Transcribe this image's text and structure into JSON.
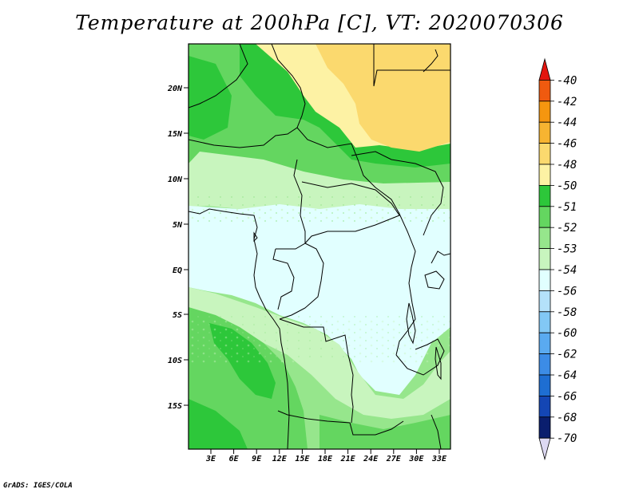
{
  "title": "Temperature at 200hPa [C], VT: 2020070306",
  "credit": "GrADS: IGES/COLA",
  "map": {
    "lat_labels": [
      "20N",
      "15N",
      "10N",
      "5N",
      "EQ",
      "5S",
      "10S",
      "15S"
    ],
    "lon_labels": [
      "3E",
      "6E",
      "9E",
      "12E",
      "15E",
      "18E",
      "21E",
      "24E",
      "27E",
      "30E",
      "33E"
    ]
  },
  "colorbar": {
    "labels": [
      "-40",
      "-42",
      "-44",
      "-46",
      "-48",
      "-50",
      "-51",
      "-52",
      "-53",
      "-54",
      "-56",
      "-58",
      "-60",
      "-62",
      "-64",
      "-66",
      "-68",
      "-70"
    ],
    "colors": [
      "#e3150f",
      "#f05a0f",
      "#f5960f",
      "#f7b431",
      "#fbd96e",
      "#fdf2a4",
      "#2dc73a",
      "#64d660",
      "#96e68c",
      "#c8f5be",
      "#e1ffff",
      "#b4e1fa",
      "#82c8f5",
      "#5aaaf0",
      "#3c8ce6",
      "#1e6ed2",
      "#1446b4",
      "#0a1e6e",
      "#ddd9f2"
    ]
  }
}
